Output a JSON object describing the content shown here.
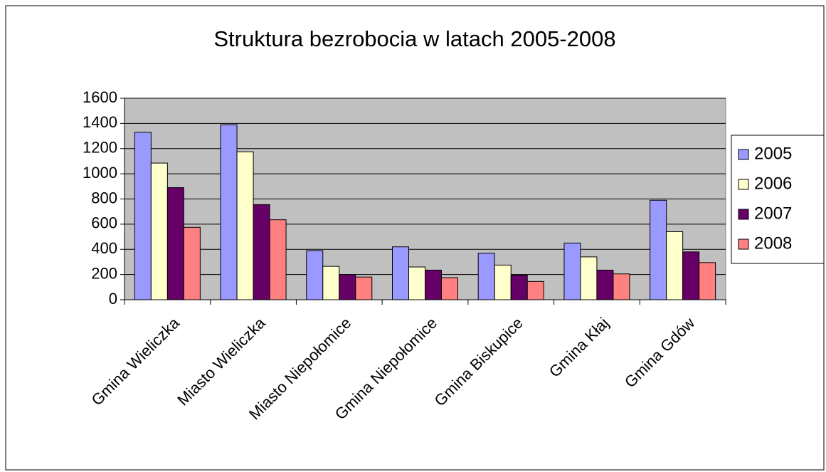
{
  "chart_data": {
    "type": "bar",
    "title": "Struktura bezrobocia w latach 2005-2008",
    "categories": [
      "Gmina Wieliczka",
      "Miasto Wieliczka",
      "Miasto Niepołomice",
      "Gmina Niepołomice",
      "Gmina Biskupice",
      "Gmina Kłaj",
      "Gmina Gdów"
    ],
    "series": [
      {
        "name": "2005",
        "color": "#9999ff",
        "values": [
          1330,
          1390,
          390,
          420,
          370,
          450,
          790
        ]
      },
      {
        "name": "2006",
        "color": "#ffffcc",
        "values": [
          1085,
          1175,
          265,
          260,
          275,
          340,
          540
        ]
      },
      {
        "name": "2007",
        "color": "#660066",
        "values": [
          890,
          755,
          200,
          235,
          195,
          235,
          380
        ]
      },
      {
        "name": "2008",
        "color": "#ff8080",
        "values": [
          575,
          635,
          180,
          175,
          145,
          205,
          295
        ]
      }
    ],
    "ylim": [
      0,
      1600
    ],
    "yticks": [
      0,
      200,
      400,
      600,
      800,
      1000,
      1200,
      1400,
      1600
    ],
    "grid": true,
    "legend": "right"
  }
}
